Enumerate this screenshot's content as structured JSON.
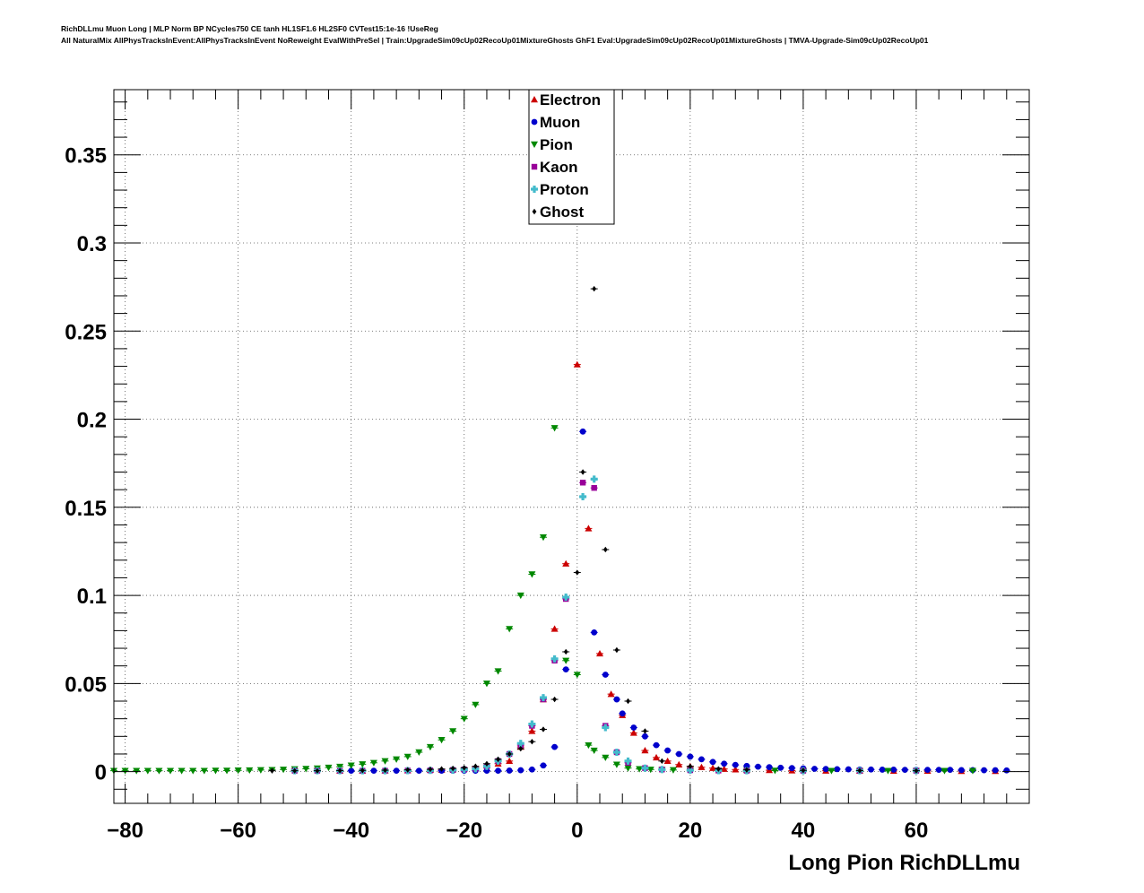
{
  "header": {
    "line1": "RichDLLmu Muon Long | MLP Norm BP NCycles750 CE tanh HL1SF1.6 HL2SF0 CVTest15:1e-16 !UseReg",
    "line2": "All NaturalMix AllPhysTracksInEvent:AllPhysTracksInEvent NoReweight EvalWithPreSel | Train:UpgradeSim09cUp02RecoUp01MixtureGhosts GhF1 Eval:UpgradeSim09cUp02RecoUp01MixtureGhosts | TMVA-Upgrade-Sim09cUp02RecoUp01"
  },
  "chart_data": {
    "type": "scatter",
    "title": "",
    "xlabel": "Long Pion RichDLLmu",
    "ylabel": "",
    "xlim": [
      -82,
      80
    ],
    "ylim": [
      -0.018,
      0.387
    ],
    "grid": true,
    "legend_position": "top-center",
    "xticks": [
      -80,
      -60,
      -40,
      -20,
      0,
      20,
      40,
      60
    ],
    "xtick_labels": [
      "−80",
      "−60",
      "−40",
      "−20",
      "0",
      "20",
      "40",
      "60"
    ],
    "yticks": [
      0,
      0.05,
      0.1,
      0.15,
      0.2,
      0.25,
      0.3,
      0.35
    ],
    "ytick_labels": [
      "0",
      "0.05",
      "0.1",
      "0.15",
      "0.2",
      "0.25",
      "0.3",
      "0.35"
    ],
    "series": [
      {
        "name": "Electron",
        "color": "#cc0000",
        "marker": "triangle-up",
        "x": [
          -42,
          -38,
          -34,
          -30,
          -26,
          -24,
          -22,
          -20,
          -18,
          -16,
          -14,
          -12,
          -10,
          -8,
          -6,
          -4,
          -2,
          0,
          2,
          4,
          6,
          8,
          10,
          12,
          14,
          16,
          18,
          20,
          22,
          24,
          26,
          28,
          30,
          34,
          38,
          44,
          50,
          56,
          62,
          68,
          74
        ],
        "y": [
          0.0005,
          0.0005,
          0.0006,
          0.0007,
          0.0009,
          0.001,
          0.0013,
          0.0017,
          0.0025,
          0.0035,
          0.0045,
          0.006,
          0.014,
          0.023,
          0.041,
          0.081,
          0.118,
          0.231,
          0.138,
          0.067,
          0.044,
          0.032,
          0.022,
          0.012,
          0.008,
          0.006,
          0.004,
          0.003,
          0.0025,
          0.002,
          0.0015,
          0.0012,
          0.001,
          0.0008,
          0.0006,
          0.0005,
          0.0005,
          0.0004,
          0.0004,
          0.0003,
          0.0003
        ]
      },
      {
        "name": "Muon",
        "color": "#0000cc",
        "marker": "circle",
        "x": [
          -42,
          -40,
          -38,
          -36,
          -34,
          -32,
          -30,
          -28,
          -26,
          -24,
          -22,
          -20,
          -18,
          -16,
          -14,
          -12,
          -10,
          -8,
          -6,
          -4,
          -2,
          1,
          3,
          5,
          7,
          8,
          10,
          12,
          14,
          16,
          18,
          20,
          22,
          24,
          26,
          28,
          30,
          32,
          34,
          36,
          38,
          40,
          42,
          44,
          46,
          48,
          50,
          52,
          54,
          56,
          58,
          60,
          62,
          64,
          66,
          68,
          70,
          72,
          74,
          76
        ],
        "y": [
          0.0005,
          0.0005,
          0.0005,
          0.0005,
          0.0005,
          0.0005,
          0.0005,
          0.0005,
          0.0005,
          0.0005,
          0.0005,
          0.0005,
          0.0005,
          0.0005,
          0.0005,
          0.0006,
          0.0008,
          0.0012,
          0.0035,
          0.014,
          0.058,
          0.193,
          0.079,
          0.055,
          0.041,
          0.033,
          0.025,
          0.02,
          0.015,
          0.012,
          0.01,
          0.0085,
          0.007,
          0.0055,
          0.0045,
          0.0038,
          0.0032,
          0.0028,
          0.0025,
          0.0022,
          0.002,
          0.0018,
          0.0016,
          0.0015,
          0.0014,
          0.0013,
          0.0012,
          0.0012,
          0.0011,
          0.0011,
          0.001,
          0.001,
          0.001,
          0.001,
          0.001,
          0.0009,
          0.0009,
          0.0008,
          0.0008,
          0.0007
        ]
      },
      {
        "name": "Pion",
        "color": "#008800",
        "marker": "triangle-down",
        "x": [
          -82,
          -80,
          -78,
          -76,
          -74,
          -72,
          -70,
          -68,
          -66,
          -64,
          -62,
          -60,
          -58,
          -56,
          -54,
          -52,
          -50,
          -48,
          -46,
          -44,
          -42,
          -40,
          -38,
          -36,
          -34,
          -32,
          -30,
          -28,
          -26,
          -24,
          -22,
          -20,
          -18,
          -16,
          -14,
          -12,
          -10,
          -8,
          -6,
          -4,
          -2,
          0,
          2,
          3,
          5,
          7,
          9,
          11,
          13,
          15,
          17,
          20,
          25,
          30,
          35,
          40,
          45,
          50,
          55,
          60,
          65,
          70
        ],
        "y": [
          0.0005,
          0.0005,
          0.0005,
          0.0005,
          0.0005,
          0.0005,
          0.0005,
          0.0005,
          0.0005,
          0.0006,
          0.0006,
          0.0007,
          0.0008,
          0.0009,
          0.001,
          0.0012,
          0.0014,
          0.0016,
          0.0019,
          0.0023,
          0.0028,
          0.0035,
          0.0042,
          0.005,
          0.006,
          0.007,
          0.0085,
          0.011,
          0.014,
          0.018,
          0.023,
          0.03,
          0.038,
          0.05,
          0.057,
          0.081,
          0.1,
          0.112,
          0.133,
          0.195,
          0.063,
          0.055,
          0.015,
          0.012,
          0.008,
          0.004,
          0.002,
          0.0015,
          0.0012,
          0.001,
          0.0009,
          0.0008,
          0.0007,
          0.0006,
          0.0006,
          0.0005,
          0.0005,
          0.0005,
          0.0005,
          0.0005,
          0.0005,
          0.0005
        ]
      },
      {
        "name": "Kaon",
        "color": "#990099",
        "marker": "square",
        "x": [
          -50,
          -46,
          -42,
          -38,
          -34,
          -30,
          -26,
          -22,
          -20,
          -18,
          -16,
          -14,
          -12,
          -10,
          -8,
          -6,
          -4,
          -2,
          1,
          3,
          5,
          7,
          9,
          12,
          15,
          20,
          25,
          30,
          40,
          50,
          60
        ],
        "y": [
          0.0005,
          0.0005,
          0.0005,
          0.0005,
          0.0005,
          0.0006,
          0.0007,
          0.0009,
          0.0012,
          0.0016,
          0.003,
          0.006,
          0.01,
          0.015,
          0.026,
          0.041,
          0.063,
          0.098,
          0.164,
          0.161,
          0.026,
          0.011,
          0.005,
          0.002,
          0.0012,
          0.0008,
          0.0006,
          0.0005,
          0.0005,
          0.0005,
          0.0005
        ]
      },
      {
        "name": "Proton",
        "color": "#44bbcc",
        "marker": "plus",
        "x": [
          -50,
          -46,
          -42,
          -38,
          -34,
          -30,
          -26,
          -22,
          -20,
          -18,
          -16,
          -14,
          -12,
          -10,
          -8,
          -6,
          -4,
          -2,
          1,
          3,
          5,
          7,
          9,
          12,
          15,
          20,
          25,
          30,
          40,
          50,
          60
        ],
        "y": [
          0.0005,
          0.0005,
          0.0005,
          0.0005,
          0.0005,
          0.0006,
          0.0007,
          0.0009,
          0.0012,
          0.0016,
          0.003,
          0.006,
          0.01,
          0.016,
          0.027,
          0.042,
          0.064,
          0.099,
          0.156,
          0.166,
          0.025,
          0.011,
          0.006,
          0.002,
          0.0012,
          0.0008,
          0.0006,
          0.0005,
          0.0005,
          0.0005,
          0.0005
        ]
      },
      {
        "name": "Ghost",
        "color": "#000000",
        "marker": "diamond",
        "x": [
          -54,
          -50,
          -46,
          -42,
          -38,
          -34,
          -30,
          -26,
          -24,
          -22,
          -20,
          -18,
          -16,
          -14,
          -12,
          -10,
          -8,
          -6,
          -4,
          -2,
          0,
          1,
          3,
          5,
          7,
          9,
          12,
          15,
          20,
          25,
          30,
          40,
          50,
          60
        ],
        "y": [
          0.0005,
          0.0005,
          0.0005,
          0.0006,
          0.0007,
          0.0008,
          0.001,
          0.0013,
          0.0015,
          0.0018,
          0.0022,
          0.003,
          0.0045,
          0.007,
          0.01,
          0.013,
          0.017,
          0.024,
          0.041,
          0.068,
          0.113,
          0.17,
          0.274,
          0.126,
          0.069,
          0.04,
          0.023,
          0.006,
          0.003,
          0.0015,
          0.001,
          0.0007,
          0.0006,
          0.0005
        ]
      }
    ]
  }
}
